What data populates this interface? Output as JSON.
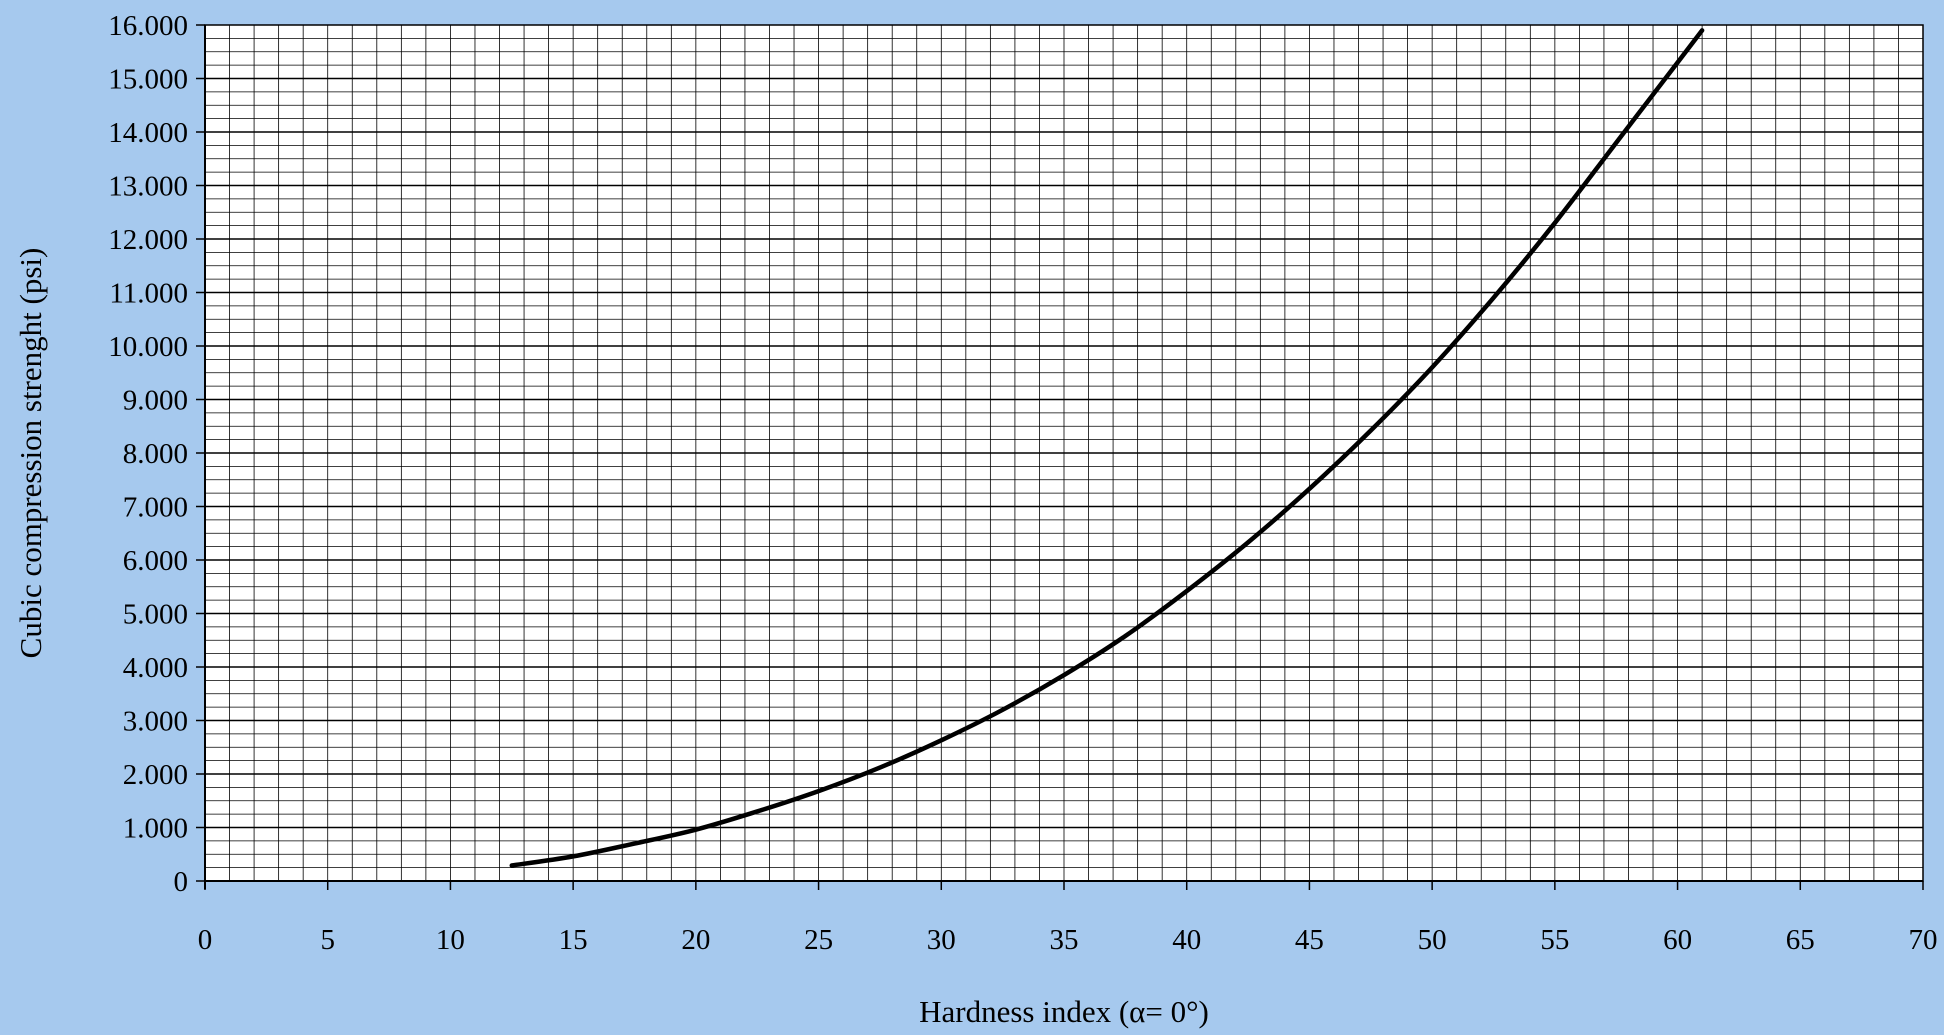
{
  "chart_data": {
    "type": "line",
    "title": "",
    "xlabel": "Hardness index (α= 0°)",
    "ylabel": "Cubic compression strenght (psi)",
    "xlim": [
      0,
      70
    ],
    "ylim": [
      0,
      16000
    ],
    "x_ticks": [
      "0",
      "5",
      "10",
      "15",
      "20",
      "25",
      "30",
      "35",
      "40",
      "45",
      "50",
      "55",
      "60",
      "65",
      "70"
    ],
    "y_ticks": [
      "0",
      "1.000",
      "2.000",
      "3.000",
      "4.000",
      "5.000",
      "6.000",
      "7.000",
      "8.000",
      "9.000",
      "10.000",
      "11.000",
      "12.000",
      "13.000",
      "14.000",
      "15.000",
      "16.000"
    ],
    "grid": true,
    "grid_minor": {
      "x_step": 1,
      "y_step": 250
    },
    "background_color": "#a6c9ee",
    "plot_background_color": "#ffffff",
    "line_color": "#000000",
    "series": [
      {
        "x": [
          12.5,
          15,
          17.5,
          20,
          22.5,
          25,
          27.5,
          30,
          32.5,
          35,
          37.5,
          40,
          42.5,
          45,
          47.5,
          50,
          52.5,
          55,
          57.5,
          60,
          61
        ],
        "y": [
          290,
          460,
          700,
          960,
          1300,
          1680,
          2120,
          2630,
          3200,
          3850,
          4580,
          5420,
          6330,
          7330,
          8420,
          9600,
          10900,
          12300,
          13800,
          15300,
          15900
        ]
      }
    ]
  }
}
